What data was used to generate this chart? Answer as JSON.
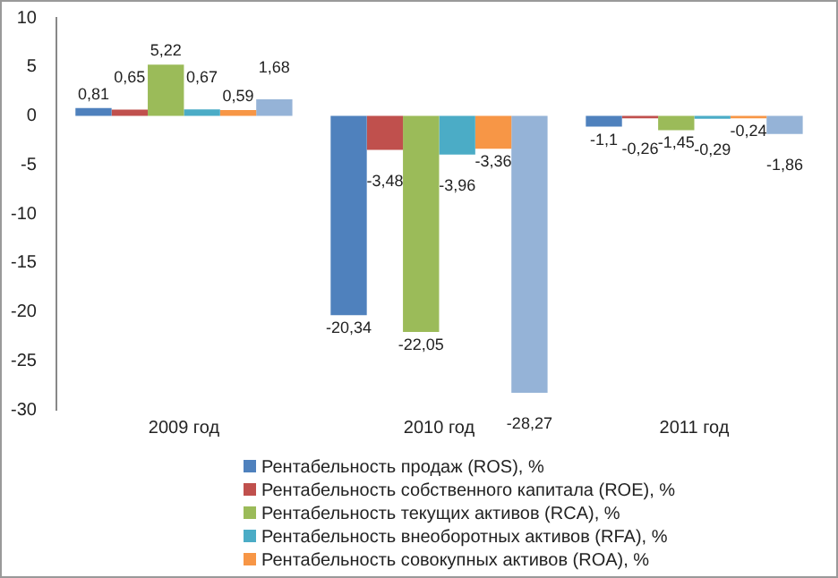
{
  "chart_data": {
    "type": "bar",
    "categories": [
      "2009 год",
      "2010 год",
      "2011 год"
    ],
    "series": [
      {
        "name": "Рентабельность продаж (ROS), %",
        "color": "#4f81bd",
        "values": [
          0.81,
          -20.34,
          -1.1
        ],
        "value_labels": [
          "0,81",
          "-20,34",
          "-1,1"
        ]
      },
      {
        "name": "Рентабельность собственного капитала (ROE), %",
        "color": "#c0504d",
        "values": [
          0.65,
          -3.48,
          -0.26
        ],
        "value_labels": [
          "0,65",
          "-3,48",
          "-0,26"
        ]
      },
      {
        "name": "Рентабельность текущих активов (RCA), %",
        "color": "#9bbb59",
        "values": [
          5.22,
          -22.05,
          -1.45
        ],
        "value_labels": [
          "5,22",
          "-22,05",
          "-1,45"
        ]
      },
      {
        "name": "Рентабельность внеоборотных активов (RFA), %",
        "color": "#4bacc6",
        "values": [
          0.67,
          -3.96,
          -0.29
        ],
        "value_labels": [
          "0,67",
          "-3,96",
          "-0,29"
        ]
      },
      {
        "name": "Рентабельность совокупных активов (ROA), %",
        "color": "#f79646",
        "values": [
          0.59,
          -3.36,
          -0.24
        ],
        "value_labels": [
          "0,59",
          "-3,36",
          "-0,24"
        ]
      },
      {
        "color": "#95b3d7",
        "values": [
          1.68,
          -28.27,
          -1.86
        ],
        "value_labels": [
          "1,68",
          "-28,27",
          "-1,86"
        ]
      }
    ],
    "ylim": [
      -30,
      10
    ],
    "yticks": [
      -30,
      -25,
      -20,
      -15,
      -10,
      -5,
      0,
      5,
      10
    ],
    "grid": false,
    "legend": "bottom"
  }
}
